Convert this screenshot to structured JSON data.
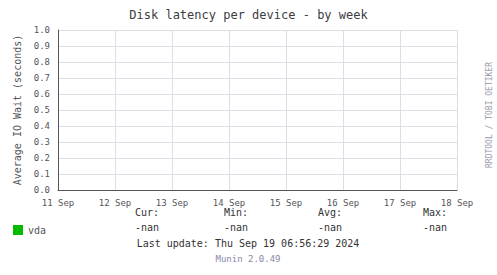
{
  "chart_data": {
    "type": "line",
    "title": "Disk latency per device - by week",
    "ylabel": "Average IO Wait (seconds)",
    "categories": [
      "11 Sep",
      "12 Sep",
      "13 Sep",
      "14 Sep",
      "15 Sep",
      "16 Sep",
      "17 Sep",
      "18 Sep"
    ],
    "series": [
      {
        "name": "vda",
        "color": "#00bb00",
        "values": [
          null,
          null,
          null,
          null,
          null,
          null,
          null,
          null
        ]
      }
    ],
    "ylim": [
      0.0,
      1.0
    ],
    "yticks": [
      {
        "value": 0.0,
        "label": "0.0"
      },
      0.1,
      0.2,
      0.3,
      0.4,
      0.5,
      0.6,
      0.7,
      0.8,
      0.9,
      {
        "value": 1.0,
        "label": "1.0"
      }
    ],
    "grid": true,
    "annotations": [
      [
        "Cur:",
        "Min:",
        "Avg:",
        "Max:"
      ],
      [
        "-nan",
        "-nan",
        "-nan",
        "-nan"
      ],
      [
        "Last update: Thu Sep 19 06:56:29 2024"
      ],
      [
        "Munin 2.0.49"
      ],
      [
        "RRDTOOL / TOBI OETIKER"
      ]
    ]
  }
}
